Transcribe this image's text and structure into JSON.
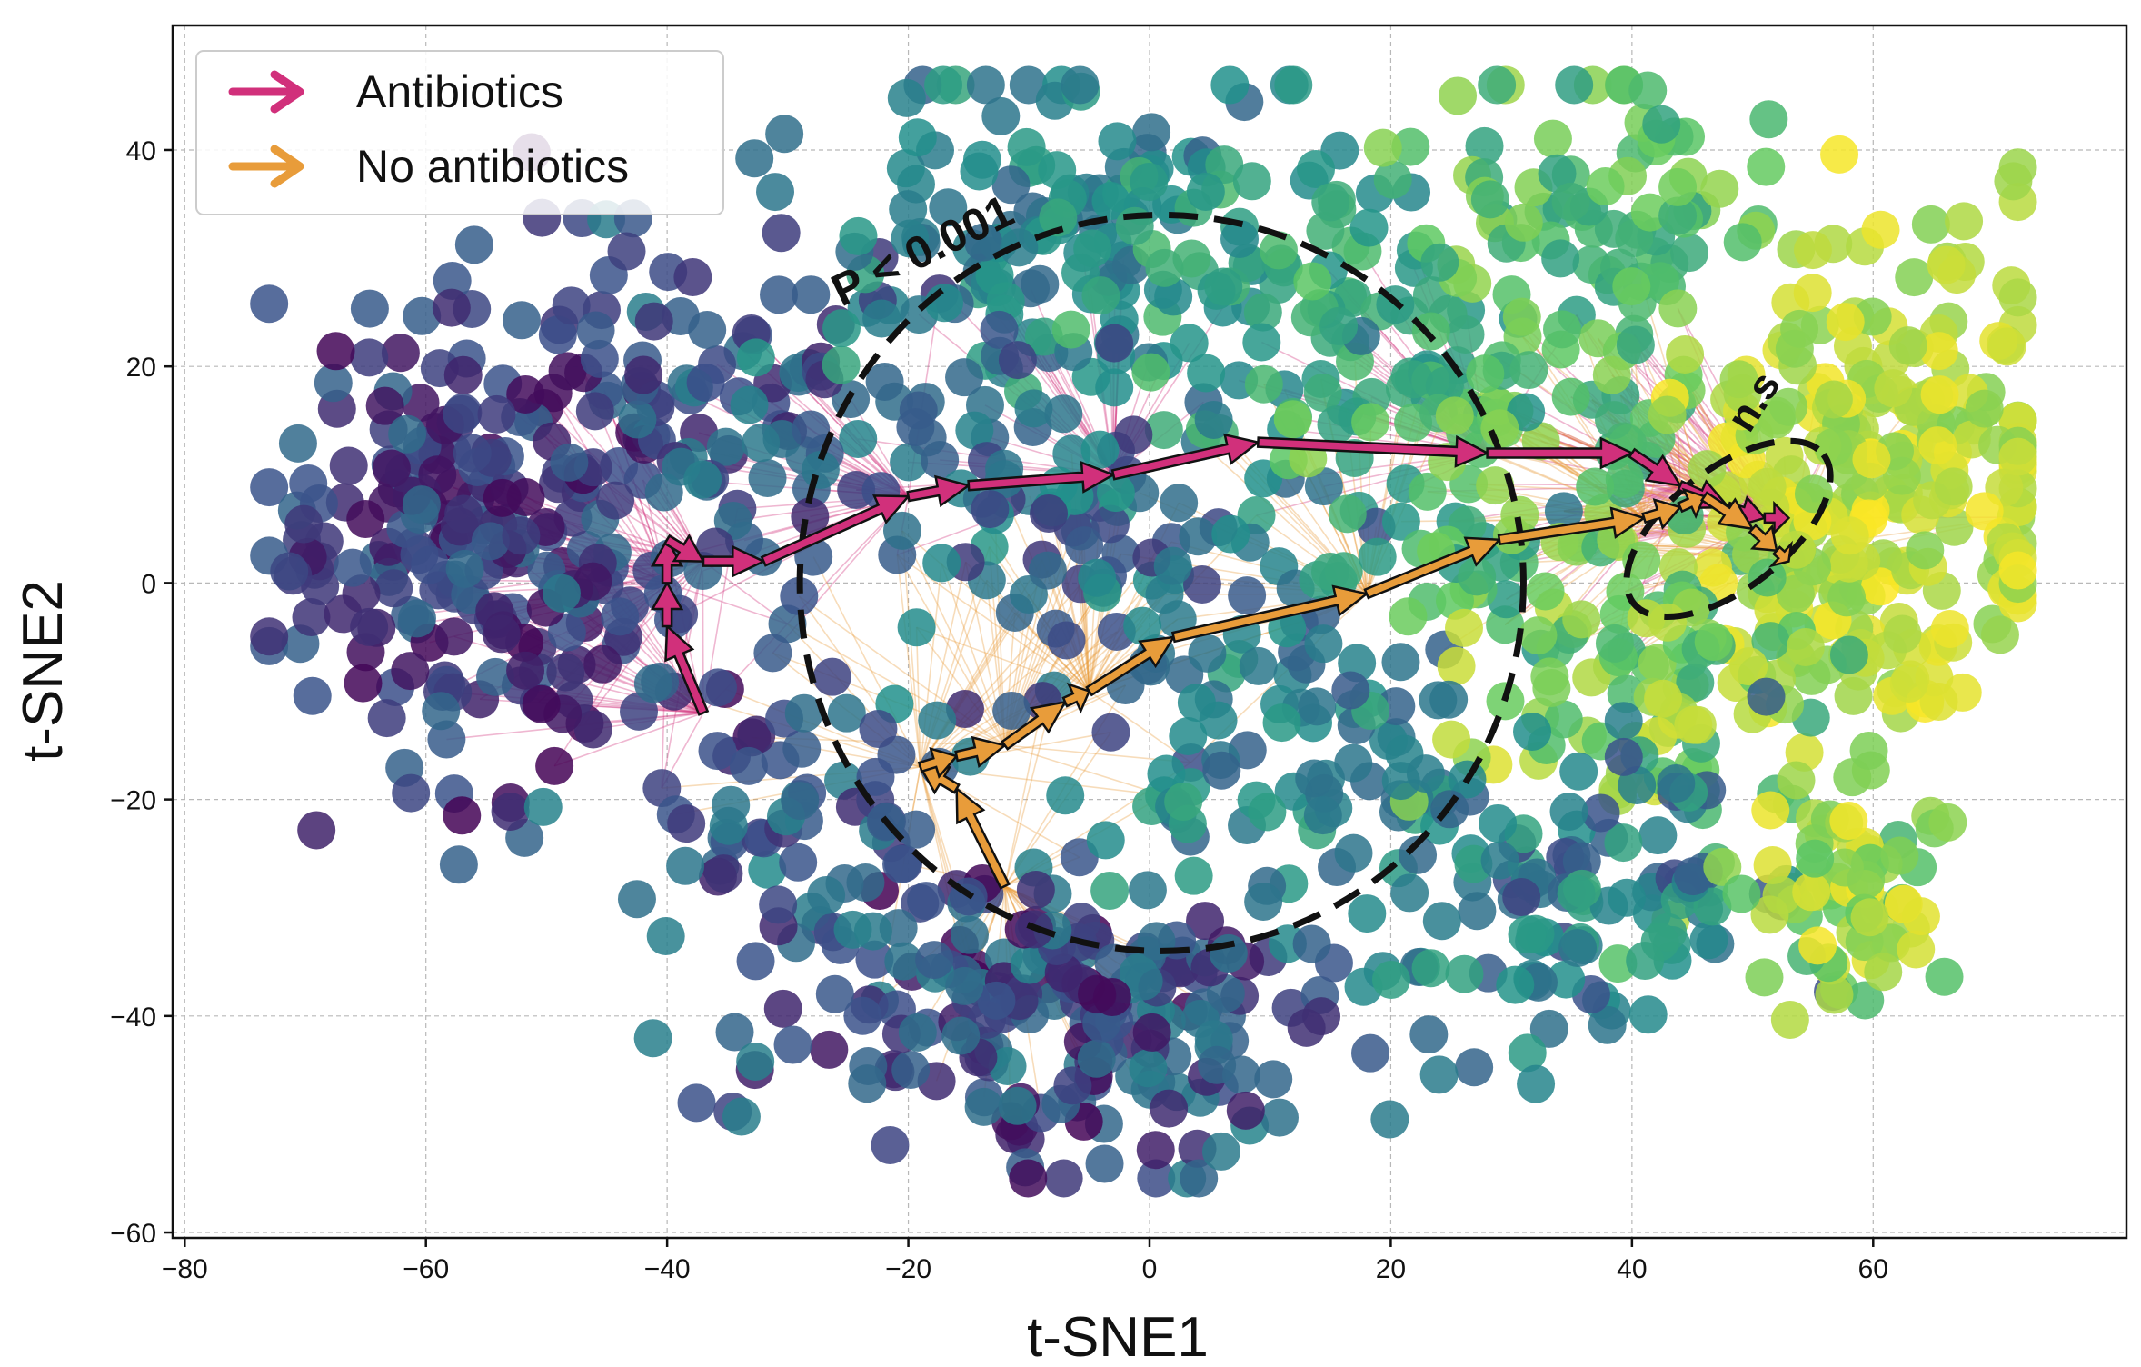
{
  "chart_data": {
    "type": "scatter",
    "xlabel": "t-SNE1",
    "ylabel": "t-SNE2",
    "xlim": [
      -81,
      81
    ],
    "ylim": [
      -60.5,
      51.5
    ],
    "x_ticks": [
      -80,
      -60,
      -40,
      -20,
      0,
      20,
      40,
      60
    ],
    "y_ticks": [
      -60,
      -40,
      -20,
      0,
      20,
      40
    ],
    "x_tick_labels": [
      "−80",
      "−60",
      "−40",
      "−20",
      "0",
      "20",
      "40",
      "60"
    ],
    "y_tick_labels": [
      "−60",
      "−40",
      "−20",
      "0",
      "20",
      "40"
    ],
    "grid": true,
    "colormap": [
      "#440154",
      "#3b528b",
      "#21918c",
      "#5ec962",
      "#fde725"
    ],
    "legend": {
      "position": "top-left",
      "entries": [
        {
          "label": "Antibiotics",
          "color": "#d1307b"
        },
        {
          "label": "No antibiotics",
          "color": "#e89c3a"
        }
      ]
    },
    "series": [
      {
        "name": "Antibiotics",
        "color": "#d1307b",
        "type": "trajectory",
        "points": [
          [
            -37,
            -12
          ],
          [
            -40,
            -4
          ],
          [
            -40,
            0
          ],
          [
            -40,
            4
          ],
          [
            -37,
            2
          ],
          [
            -32,
            2
          ],
          [
            -20,
            8
          ],
          [
            -15,
            9
          ],
          [
            -3,
            10
          ],
          [
            9,
            13
          ],
          [
            28,
            12
          ],
          [
            40,
            12
          ],
          [
            44,
            9
          ],
          [
            48,
            7
          ],
          [
            51,
            6
          ],
          [
            53,
            6
          ]
        ]
      },
      {
        "name": "No antibiotics",
        "color": "#e89c3a",
        "type": "trajectory",
        "points": [
          [
            -12,
            -28
          ],
          [
            -16,
            -19
          ],
          [
            -19,
            -17
          ],
          [
            -16,
            -16
          ],
          [
            -12,
            -15
          ],
          [
            -7,
            -11
          ],
          [
            -5,
            -10
          ],
          [
            2,
            -5
          ],
          [
            18,
            -1
          ],
          [
            29,
            4
          ],
          [
            41,
            6
          ],
          [
            44,
            7
          ],
          [
            46,
            8
          ],
          [
            50,
            5
          ],
          [
            52,
            3
          ],
          [
            53,
            2
          ]
        ]
      }
    ],
    "ellipses": [
      {
        "cx": 1,
        "cy": 0,
        "rx": 30,
        "ry": 34,
        "label": "P < 0.001"
      },
      {
        "cx": 48,
        "cy": 5,
        "rx": 10,
        "ry": 5.5,
        "angle_deg": 38,
        "label": "n.s"
      }
    ],
    "clusters": [
      {
        "cx": -55,
        "cy": 5,
        "sx": 9,
        "sy": 12,
        "n": 230,
        "c": [
          0.0,
          0.35
        ]
      },
      {
        "cx": -33,
        "cy": 18,
        "sx": 8,
        "sy": 9,
        "n": 90,
        "c": [
          0.1,
          0.45
        ]
      },
      {
        "cx": -10,
        "cy": 30,
        "sx": 9,
        "sy": 8,
        "n": 110,
        "c": [
          0.3,
          0.6
        ]
      },
      {
        "cx": 10,
        "cy": 28,
        "sx": 8,
        "sy": 9,
        "n": 90,
        "c": [
          0.45,
          0.7
        ]
      },
      {
        "cx": -5,
        "cy": 5,
        "sx": 9,
        "sy": 9,
        "n": 90,
        "c": [
          0.15,
          0.55
        ]
      },
      {
        "cx": -8,
        "cy": -40,
        "sx": 12,
        "sy": 7,
        "n": 190,
        "c": [
          0.0,
          0.45
        ]
      },
      {
        "cx": -28,
        "cy": -22,
        "sx": 8,
        "sy": 8,
        "n": 70,
        "c": [
          0.1,
          0.5
        ]
      },
      {
        "cx": 12,
        "cy": -15,
        "sx": 9,
        "sy": 9,
        "n": 90,
        "c": [
          0.3,
          0.6
        ]
      },
      {
        "cx": 30,
        "cy": 15,
        "sx": 8,
        "sy": 11,
        "n": 110,
        "c": [
          0.5,
          0.85
        ]
      },
      {
        "cx": 38,
        "cy": 33,
        "sx": 8,
        "sy": 7,
        "n": 70,
        "c": [
          0.55,
          0.85
        ]
      },
      {
        "cx": 60,
        "cy": 8,
        "sx": 8,
        "sy": 12,
        "n": 260,
        "c": [
          0.8,
          1.0
        ]
      },
      {
        "cx": 42,
        "cy": -10,
        "sx": 8,
        "sy": 9,
        "n": 90,
        "c": [
          0.6,
          0.95
        ]
      },
      {
        "cx": 35,
        "cy": -30,
        "sx": 9,
        "sy": 7,
        "n": 110,
        "c": [
          0.2,
          0.6
        ]
      },
      {
        "cx": 57,
        "cy": -28,
        "sx": 5,
        "sy": 5,
        "n": 60,
        "c": [
          0.65,
          1.0
        ]
      }
    ]
  }
}
